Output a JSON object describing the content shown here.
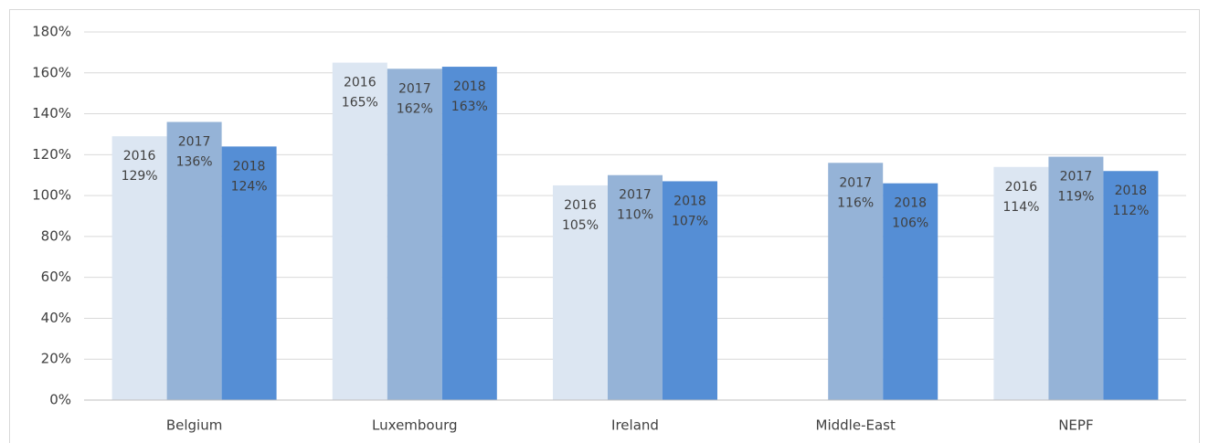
{
  "chart_data": {
    "type": "bar",
    "categories": [
      "Belgium",
      "Luxembourg",
      "Ireland",
      "Middle-East",
      "NEPF"
    ],
    "series": [
      {
        "name": "2016",
        "color": "#dce6f2",
        "values": [
          129,
          165,
          105,
          null,
          114
        ],
        "value_labels": [
          "129%",
          "165%",
          "105%",
          null,
          "114%"
        ]
      },
      {
        "name": "2017",
        "color": "#95b3d7",
        "values": [
          136,
          162,
          110,
          116,
          119
        ],
        "value_labels": [
          "136%",
          "162%",
          "110%",
          "116%",
          "119%"
        ]
      },
      {
        "name": "2018",
        "color": "#558ed5",
        "values": [
          124,
          163,
          107,
          106,
          112
        ],
        "value_labels": [
          "124%",
          "163%",
          "107%",
          "106%",
          "112%"
        ]
      }
    ],
    "ylim": [
      0,
      180
    ],
    "yticks": [
      {
        "value": 0,
        "label": "0%"
      },
      {
        "value": 20,
        "label": "20%"
      },
      {
        "value": 40,
        "label": "40%"
      },
      {
        "value": 60,
        "label": "60%"
      },
      {
        "value": 80,
        "label": "80%"
      },
      {
        "value": 100,
        "label": "100%"
      },
      {
        "value": 120,
        "label": "120%"
      },
      {
        "value": 140,
        "label": "140%"
      },
      {
        "value": 160,
        "label": "160%"
      },
      {
        "value": 180,
        "label": "180%"
      }
    ],
    "grid": true
  }
}
